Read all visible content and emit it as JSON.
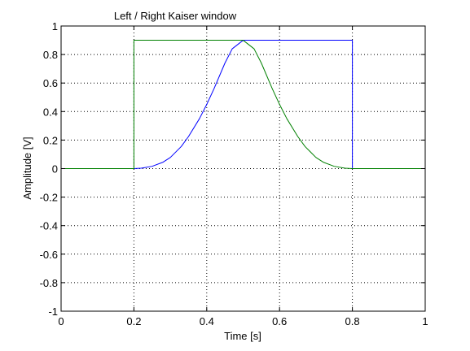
{
  "chart_data": {
    "type": "line",
    "title": "Left / Right Kaiser window",
    "xlabel": "Time [s]",
    "ylabel": "Amplitude [V]",
    "xlim": [
      0,
      1
    ],
    "ylim": [
      -1,
      1
    ],
    "xticks": [
      0,
      0.2,
      0.4,
      0.6,
      0.8,
      1
    ],
    "xtick_labels": [
      "0",
      "0.2",
      "0.4",
      "0.6",
      "0.8",
      "1"
    ],
    "yticks": [
      -1,
      -0.8,
      -0.6,
      -0.4,
      -0.2,
      0,
      0.2,
      0.4,
      0.6,
      0.8,
      1
    ],
    "ytick_labels": [
      "-1",
      "-0.8",
      "-0.6",
      "-0.4",
      "-0.2",
      "0",
      "0.2",
      "0.4",
      "0.6",
      "0.8",
      "1"
    ],
    "grid": true,
    "grid_style": "dotted",
    "legend": "none",
    "series": [
      {
        "color": "#0000ff",
        "x": [
          0,
          0.2,
          0.2,
          0.22,
          0.25,
          0.28,
          0.3,
          0.33,
          0.35,
          0.38,
          0.4,
          0.42,
          0.45,
          0.47,
          0.5,
          0.5,
          0.8,
          0.8,
          1
        ],
        "y": [
          0,
          0,
          0,
          0.003,
          0.016,
          0.045,
          0.078,
          0.155,
          0.225,
          0.35,
          0.45,
          0.56,
          0.74,
          0.84,
          0.9,
          0.9,
          0.9,
          0,
          0
        ]
      },
      {
        "color": "#008000",
        "x": [
          0,
          0.2,
          0.2,
          0.5,
          0.5,
          0.53,
          0.55,
          0.58,
          0.6,
          0.62,
          0.65,
          0.67,
          0.7,
          0.72,
          0.75,
          0.78,
          0.8,
          0.8,
          1
        ],
        "y": [
          0,
          0,
          0.9,
          0.9,
          0.9,
          0.84,
          0.74,
          0.56,
          0.45,
          0.35,
          0.225,
          0.155,
          0.078,
          0.045,
          0.016,
          0.003,
          0,
          0,
          0
        ]
      }
    ]
  }
}
